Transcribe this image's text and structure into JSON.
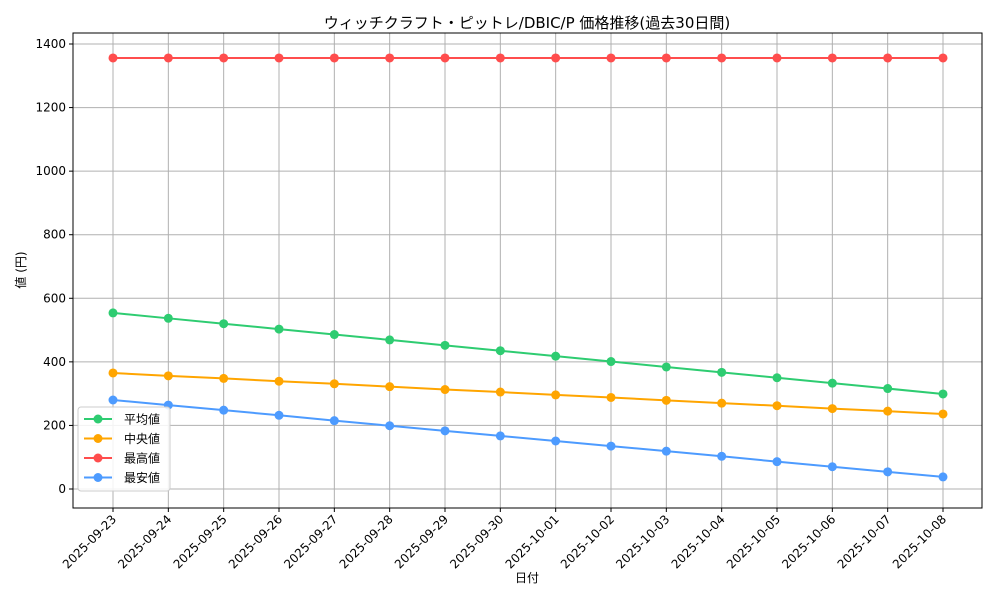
{
  "chart_data": {
    "type": "line",
    "title": "ウィッチクラフト・ピットレ/DBIC/P 価格推移(過去30日間)",
    "xlabel": "日付",
    "ylabel": "値 (円)",
    "ylim": [
      -40,
      1440
    ],
    "yticks": [
      0,
      200,
      400,
      600,
      800,
      1000,
      1200,
      1400
    ],
    "grid": true,
    "legend_position": "lower-left",
    "categories": [
      "2025-09-23",
      "2025-09-24",
      "2025-09-25",
      "2025-09-26",
      "2025-09-27",
      "2025-09-28",
      "2025-09-29",
      "2025-09-30",
      "2025-10-01",
      "2025-10-02",
      "2025-10-03",
      "2025-10-04",
      "2025-10-05",
      "2025-10-06",
      "2025-10-07",
      "2025-10-08"
    ],
    "series": [
      {
        "name": "平均値",
        "color": "#2ecc71",
        "values": [
          554,
          537,
          520,
          503,
          486,
          469,
          452,
          435,
          418,
          401,
          384,
          367,
          350,
          333,
          316,
          299
        ]
      },
      {
        "name": "中央値",
        "color": "#ffa500",
        "values": [
          365,
          356,
          348,
          339,
          331,
          322,
          313,
          305,
          296,
          288,
          279,
          270,
          262,
          253,
          245,
          236
        ]
      },
      {
        "name": "最高値",
        "color": "#ff4d4d",
        "values": [
          1356,
          1356,
          1356,
          1356,
          1356,
          1356,
          1356,
          1356,
          1356,
          1356,
          1356,
          1356,
          1356,
          1356,
          1356,
          1356
        ]
      },
      {
        "name": "最安値",
        "color": "#4d9bff",
        "values": [
          280,
          264,
          248,
          232,
          215,
          199,
          183,
          167,
          151,
          135,
          119,
          103,
          86,
          70,
          54,
          38
        ]
      }
    ]
  }
}
